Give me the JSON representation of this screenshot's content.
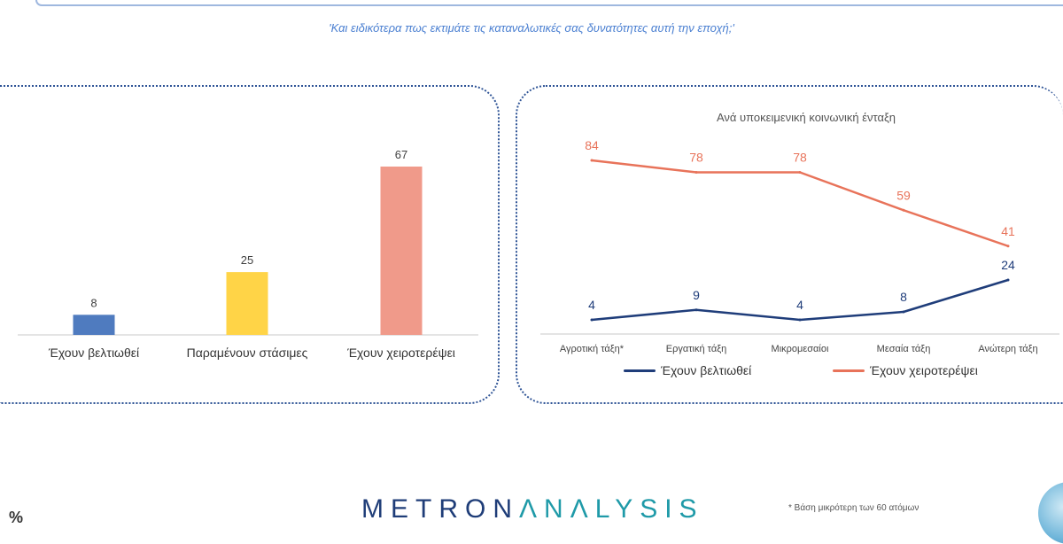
{
  "question": "'Και ειδικότερα πως εκτιμάτε τις καταναλωτικές σας δυνατότητες αυτή την εποχή;'",
  "chart_data": [
    {
      "type": "bar",
      "title": "",
      "categories": [
        "Έχουν βελτιωθεί",
        "Παραμένουν στάσιμες",
        "Έχουν χειροτερέψει"
      ],
      "values": [
        8,
        25,
        67
      ],
      "colors": [
        "#4f7bbf",
        "#ffd447",
        "#f09a8a"
      ],
      "ylim": [
        0,
        67
      ]
    },
    {
      "type": "line",
      "title": "Ανά υποκειμενική κοινωνική ένταξη",
      "categories": [
        "Αγροτική τάξη*",
        "Εργατική τάξη",
        "Μικρομεσαίοι",
        "Μεσαία τάξη",
        "Ανώτερη τάξη"
      ],
      "series": [
        {
          "name": "Έχουν βελτιωθεί",
          "values": [
            4,
            9,
            4,
            8,
            24
          ],
          "color": "#1f3d7a"
        },
        {
          "name": "Έχουν χειροτερέψει",
          "values": [
            84,
            78,
            78,
            59,
            41
          ],
          "color": "#e8735a"
        }
      ],
      "ylim": [
        0,
        100
      ]
    }
  ],
  "footer": {
    "logo_part1": "METRON",
    "logo_part2": "ΛNΛLYSIS",
    "footnote": "* Βάση μικρότερη των 60 ατόμων",
    "unit": "%"
  }
}
